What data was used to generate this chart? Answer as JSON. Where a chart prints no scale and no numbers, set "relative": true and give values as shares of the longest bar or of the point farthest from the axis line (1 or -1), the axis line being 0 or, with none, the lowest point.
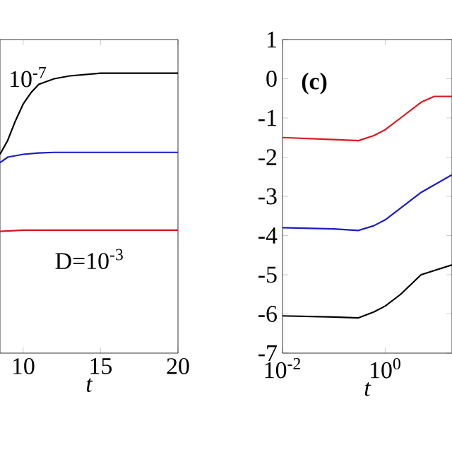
{
  "chart_data": [
    {
      "type": "line",
      "relative": true,
      "xlabel": "t",
      "xlim": [
        8.5,
        20
      ],
      "xticks": [
        10,
        15,
        20
      ],
      "annotations": [
        "10$^{-7}$",
        "D=10$^{-3}$"
      ],
      "series": [
        {
          "color": "#000000",
          "x": [
            8.5,
            9,
            9.5,
            10,
            10.5,
            11,
            12,
            13,
            15,
            20
          ],
          "values": [
            0.71,
            0.76,
            0.83,
            0.89,
            0.93,
            0.96,
            0.98,
            0.99,
            1.0,
            1.0
          ]
        },
        {
          "color": "#1a1acc",
          "x": [
            8.5,
            9,
            10,
            11,
            12,
            20
          ],
          "values": [
            0.68,
            0.7,
            0.71,
            0.715,
            0.717,
            0.717
          ]
        },
        {
          "color": "#e0141c",
          "x": [
            8.5,
            10,
            20
          ],
          "values": [
            0.435,
            0.439,
            0.439
          ]
        }
      ]
    },
    {
      "type": "line",
      "xlabel": "t",
      "log": "x",
      "xlim": [
        0.01,
        20
      ],
      "xticks": [
        {
          "value": 0.01,
          "label": "10$^{-2}$"
        },
        {
          "value": 1,
          "label": "10$^{0}$"
        }
      ],
      "ylim": [
        -7,
        1
      ],
      "yticks": [
        -7,
        -6,
        -5,
        -4,
        -3,
        -2,
        -1,
        0,
        1
      ],
      "annotations": [
        "(c)"
      ],
      "series": [
        {
          "color": "#e0141c",
          "x": [
            0.01,
            0.1,
            0.3,
            0.6,
            1,
            2,
            5,
            9,
            20
          ],
          "values": [
            -1.5,
            -1.55,
            -1.58,
            -1.45,
            -1.3,
            -1.0,
            -0.6,
            -0.45,
            -0.45
          ]
        },
        {
          "color": "#1a1acc",
          "x": [
            0.01,
            0.1,
            0.3,
            0.6,
            1,
            2,
            5,
            20
          ],
          "values": [
            -3.8,
            -3.83,
            -3.87,
            -3.75,
            -3.6,
            -3.3,
            -2.9,
            -2.45
          ]
        },
        {
          "color": "#000000",
          "x": [
            0.01,
            0.1,
            0.3,
            0.6,
            1,
            2,
            5,
            20
          ],
          "values": [
            -6.05,
            -6.08,
            -6.1,
            -5.95,
            -5.8,
            -5.5,
            -5.0,
            -4.75
          ]
        }
      ]
    }
  ]
}
